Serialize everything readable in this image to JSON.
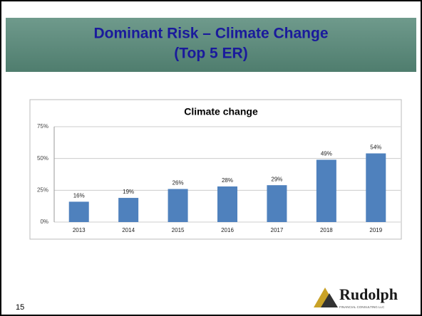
{
  "slide": {
    "title_lines": [
      "Dominant Risk – Climate Change",
      "(Top 5 ER)"
    ],
    "page_number": "15",
    "logo": {
      "name": "Rudolph",
      "tagline": "FINANCIAL CONSULTING LLC"
    }
  },
  "chart_data": {
    "type": "bar",
    "title": "Climate change",
    "categories": [
      "2013",
      "2014",
      "2015",
      "2016",
      "2017",
      "2018",
      "2019"
    ],
    "values": [
      16,
      19,
      26,
      28,
      29,
      49,
      54
    ],
    "value_labels": [
      "16%",
      "19%",
      "26%",
      "28%",
      "29%",
      "49%",
      "54%"
    ],
    "color": "#4f81bd",
    "ylim": [
      0,
      75
    ],
    "yticks": [
      {
        "value": 0,
        "label": "0%"
      },
      {
        "value": 25,
        "label": "25%"
      },
      {
        "value": 50,
        "label": "50%"
      },
      {
        "value": 75,
        "label": "75%"
      }
    ],
    "grid": true
  }
}
